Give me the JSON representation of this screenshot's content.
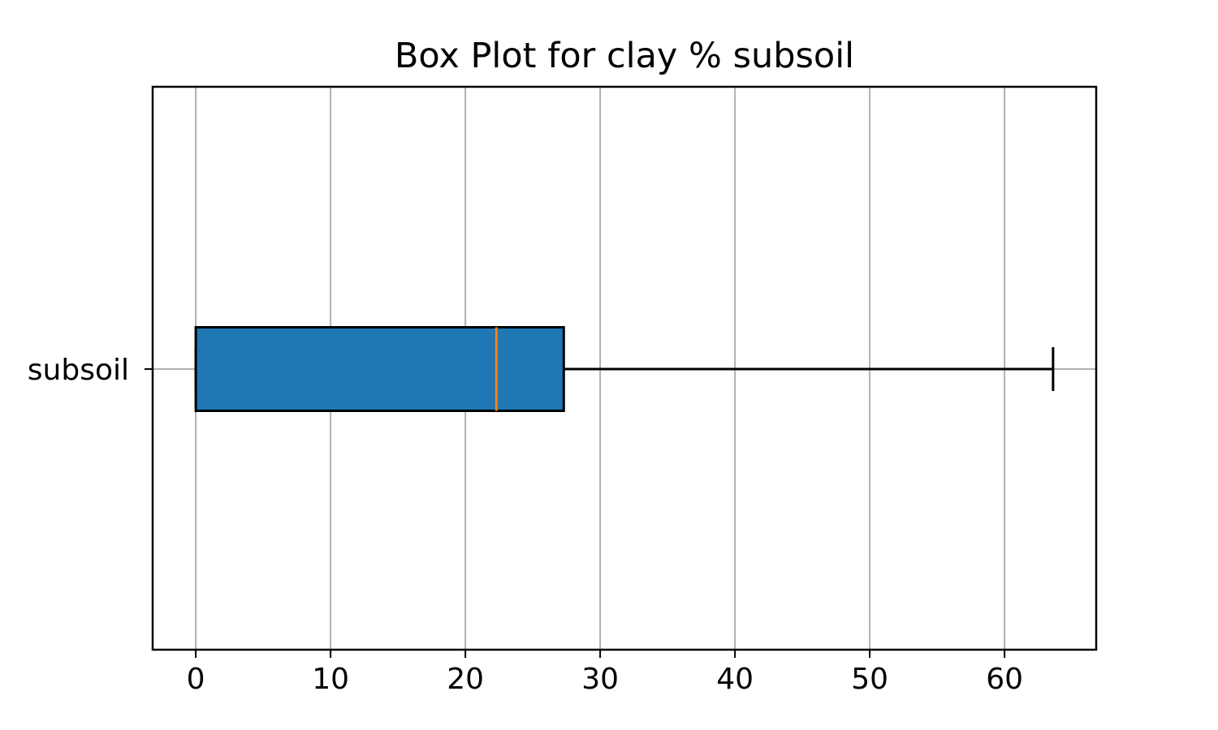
{
  "chart_data": {
    "type": "box",
    "orientation": "horizontal",
    "title": "Box Plot for clay % subsoil",
    "xlabel": "",
    "ylabel": "",
    "xlim": [
      -3.2,
      66.8
    ],
    "x_ticks": [
      0,
      10,
      20,
      30,
      40,
      50,
      60
    ],
    "x_tick_labels": [
      "0",
      "10",
      "20",
      "30",
      "40",
      "50",
      "60"
    ],
    "grid": "vertical",
    "categories": [
      "subsoil"
    ],
    "series": [
      {
        "name": "subsoil",
        "whisker_low": 0,
        "q1": 0,
        "median": 22.3,
        "q3": 27.3,
        "whisker_high": 63.6
      }
    ],
    "colors": {
      "box_fill": "#1f77b4",
      "median": "#ff7f0e",
      "grid": "#b0b0b0",
      "edge": "#000000"
    }
  }
}
